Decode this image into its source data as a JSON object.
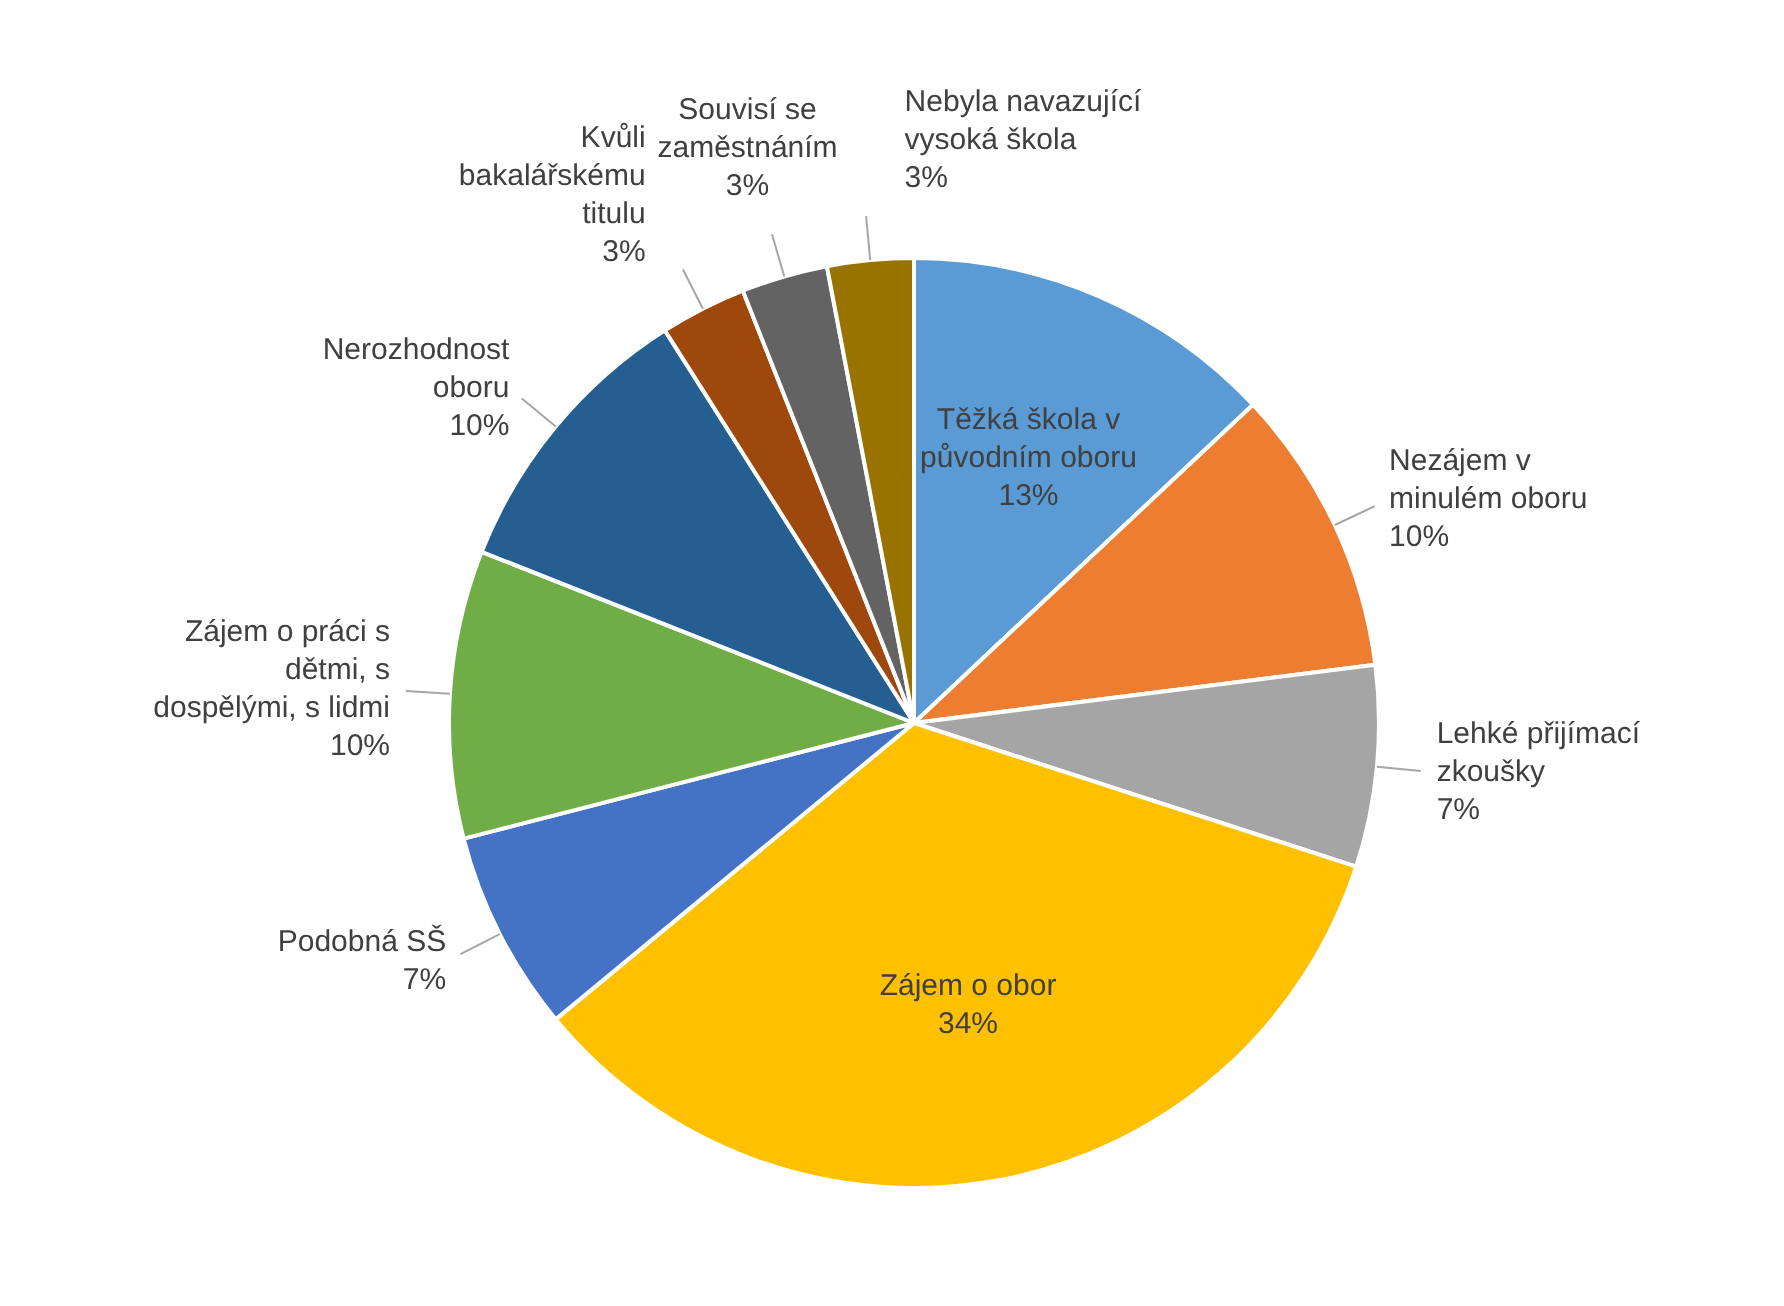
{
  "chart_data": {
    "type": "pie",
    "categories": [
      "Těžká škola v původním oboru",
      "Nezájem v minulém oboru",
      "Lehké přijímací zkoušky",
      "Zájem o obor",
      "Podobná SŠ",
      "Zájem o práci s dětmi, s dospělými, s lidmi",
      "Nerozhodnost oboru",
      "Kvůli bakalářskému titulu",
      "Souvisí se zaměstnáním",
      "Nebyla navazující vysoká škola"
    ],
    "values": [
      13,
      10,
      7,
      34,
      7,
      10,
      10,
      3,
      3,
      3
    ],
    "value_labels": [
      "13%",
      "10%",
      "7%",
      "34%",
      "7%",
      "10%",
      "10%",
      "3%",
      "3%",
      "3%"
    ],
    "colors": [
      "#5b9bd5",
      "#ed7d31",
      "#a5a5a5",
      "#ffc000",
      "#4472c4",
      "#70ad47",
      "#255e91",
      "#9e480e",
      "#636363",
      "#997300"
    ],
    "legend": false
  }
}
